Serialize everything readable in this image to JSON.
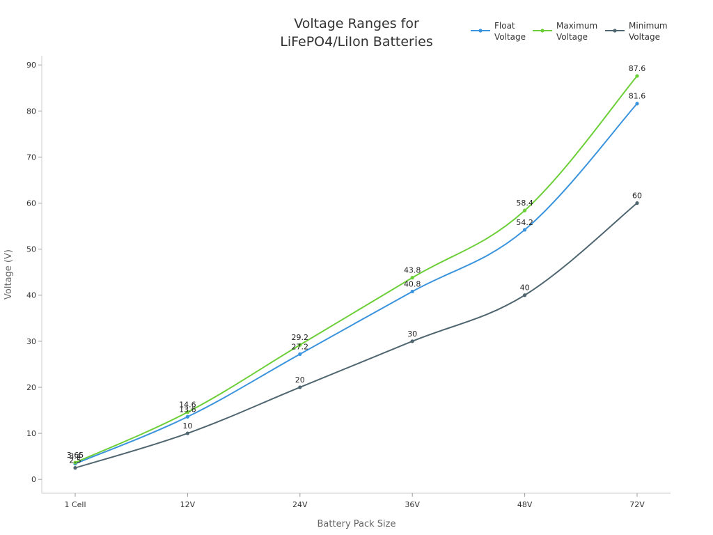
{
  "chart_data": {
    "type": "line",
    "title": "Voltage Ranges for LiFePO4/LiIon Batteries",
    "title_lines": [
      "Voltage Ranges for",
      "LiFePO4/LiIon Batteries"
    ],
    "xlabel": "Battery Pack Size",
    "ylabel": "Voltage (V)",
    "categories": [
      "1 Cell",
      "12V",
      "24V",
      "36V",
      "48V",
      "72V"
    ],
    "ylim": [
      -3,
      92
    ],
    "yticks": [
      0,
      10,
      20,
      30,
      40,
      50,
      60,
      70,
      80,
      90
    ],
    "grid": false,
    "legend_position": "top-right",
    "series": [
      {
        "name": "Float Voltage",
        "legend_lines": [
          "Float",
          "Voltage"
        ],
        "color": "#3a93dd",
        "values": [
          3.4,
          13.6,
          27.2,
          40.8,
          54.2,
          81.6
        ],
        "labels": [
          "3.4",
          "13.6",
          "27.2",
          "40.8",
          "54.2",
          "81.6"
        ]
      },
      {
        "name": "Maximum Voltage",
        "legend_lines": [
          "Maximum",
          "Voltage"
        ],
        "color": "#6ccf38",
        "values": [
          3.65,
          14.6,
          29.2,
          43.8,
          58.4,
          87.6
        ],
        "labels": [
          "3.65",
          "14.6",
          "29.2",
          "43.8",
          "58.4",
          "87.6"
        ]
      },
      {
        "name": "Minimum Voltage",
        "legend_lines": [
          "Minimum",
          "Voltage"
        ],
        "color": "#4f6670",
        "values": [
          2.5,
          10,
          20,
          30,
          40,
          60
        ],
        "labels": [
          "2.5",
          "10",
          "20",
          "30",
          "40",
          "60"
        ]
      }
    ]
  }
}
